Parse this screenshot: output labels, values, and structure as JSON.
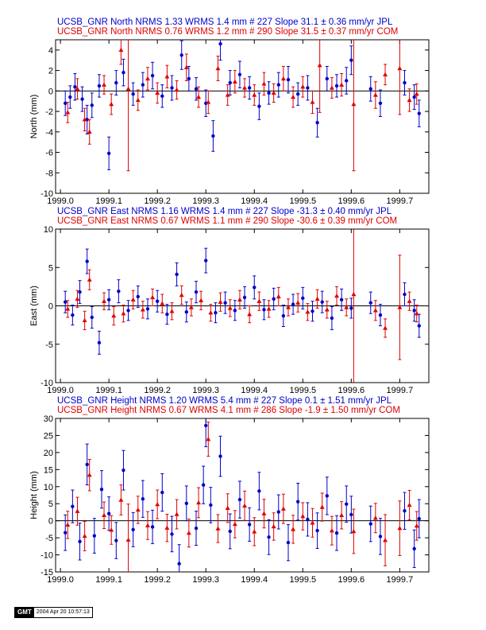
{
  "colors": {
    "jpl": "#0000cc",
    "com": "#e00000",
    "zero_line": "#000000"
  },
  "chart_data": [
    {
      "type": "scatter",
      "component": "North",
      "header_lines": [
        "UCSB_GNR North NRMS 1.33 WRMS  1.4 mm # 227 Slope   31.1 ±  0.36 mm/yr JPL",
        "UCSB_GNR North NRMS 0.76 WRMS  1.2 mm # 290 Slope   31.5 ±  0.37 mm/yr COM"
      ],
      "ylabel": "North (mm)",
      "xlim": [
        1998.99,
        1999.76
      ],
      "ylim": [
        -10,
        5
      ],
      "x_ticks": [
        1999.0,
        1999.1,
        1999.2,
        1999.3,
        1999.4,
        1999.5,
        1999.6,
        1999.7
      ],
      "x_tick_labels": [
        "1999.0",
        "1999.1",
        "1999.2",
        "1999.3",
        "1999.4",
        "1999.5",
        "1999.6",
        "1999.7"
      ],
      "y_ticks": [
        -10,
        -8,
        -6,
        -4,
        -2,
        0,
        2,
        4
      ],
      "y_tick_labels": [
        "-10",
        "-8",
        "-6",
        "-4",
        "-2",
        "0",
        "2",
        "4"
      ],
      "series": [
        {
          "name": "JPL",
          "marker": "circle",
          "x": [
            1999.01,
            1999.02,
            1999.03,
            1999.045,
            1999.055,
            1999.065,
            1999.08,
            1999.1,
            1999.115,
            1999.13,
            1999.15,
            1999.17,
            1999.19,
            1999.21,
            1999.23,
            1999.25,
            1999.265,
            1999.28,
            1999.3,
            1999.315,
            1999.33,
            1999.35,
            1999.37,
            1999.39,
            1999.41,
            1999.43,
            1999.45,
            1999.47,
            1999.49,
            1999.51,
            1999.53,
            1999.55,
            1999.57,
            1999.59,
            1999.6,
            1999.64,
            1999.66,
            1999.71,
            1999.73,
            1999.74
          ],
          "y": [
            -1.2,
            -0.6,
            0.4,
            -0.8,
            -2.8,
            -1.4,
            0.5,
            -6.1,
            0.8,
            1.8,
            -0.3,
            0.6,
            1.5,
            -0.5,
            0.3,
            3.5,
            1.2,
            0.2,
            -1.2,
            -4.4,
            4.6,
            0.8,
            1.6,
            0.3,
            -1.5,
            -0.2,
            0.6,
            1.1,
            -0.3,
            0.3,
            -3.1,
            1.2,
            0.5,
            1.0,
            3.0,
            0.2,
            -1.2,
            0.8,
            -0.6,
            -2.2
          ],
          "err": [
            1.2,
            1.1,
            1.3,
            1.2,
            1.4,
            1.2,
            1.1,
            1.6,
            1.2,
            1.3,
            1.1,
            1.2,
            1.3,
            1.1,
            1.2,
            1.4,
            1.2,
            1.1,
            1.3,
            1.5,
            1.6,
            1.2,
            1.3,
            1.1,
            1.3,
            1.1,
            1.2,
            1.3,
            1.1,
            1.2,
            1.4,
            1.2,
            1.1,
            1.3,
            1.4,
            1.2,
            1.3,
            1.2,
            1.2,
            1.3
          ]
        },
        {
          "name": "COM",
          "marker": "triangle",
          "x": [
            1999.015,
            1999.035,
            1999.05,
            1999.06,
            1999.09,
            1999.105,
            1999.125,
            1999.14,
            1999.16,
            1999.18,
            1999.2,
            1999.22,
            1999.24,
            1999.26,
            1999.285,
            1999.305,
            1999.325,
            1999.345,
            1999.36,
            1999.38,
            1999.4,
            1999.42,
            1999.44,
            1999.46,
            1999.48,
            1999.5,
            1999.52,
            1999.535,
            1999.56,
            1999.58,
            1999.605,
            1999.65,
            1999.67,
            1999.7,
            1999.72,
            1999.735
          ],
          "y": [
            -2.1,
            0.2,
            -2.8,
            -4.0,
            0.6,
            -1.3,
            4.0,
            0.2,
            -0.9,
            1.2,
            -0.2,
            1.4,
            0.1,
            2.3,
            -0.6,
            -1.1,
            2.2,
            -0.4,
            0.9,
            0.3,
            -0.4,
            0.7,
            -0.2,
            1.2,
            -0.6,
            0.4,
            -1.1,
            2.5,
            0.3,
            0.6,
            -1.3,
            -0.4,
            1.6,
            2.2,
            -0.9,
            -0.3
          ],
          "err": [
            1.0,
            1.0,
            1.1,
            1.2,
            0.9,
            1.0,
            1.4,
            8.0,
            1.0,
            1.1,
            1.0,
            1.1,
            0.9,
            1.3,
            1.0,
            1.1,
            1.2,
            1.0,
            1.1,
            0.9,
            1.0,
            1.1,
            0.9,
            1.2,
            1.0,
            1.0,
            1.1,
            4.6,
            1.0,
            1.1,
            6.5,
            1.3,
            1.0,
            4.5,
            1.1,
            1.0
          ]
        }
      ]
    },
    {
      "type": "scatter",
      "component": "East",
      "header_lines": [
        "UCSB_GNR East NRMS 1.16 WRMS  1.4 mm # 227 Slope  -31.3 ±  0.40 mm/yr JPL",
        "UCSB_GNR East NRMS 0.67 WRMS  1.1 mm # 290 Slope  -30.6 ±  0.39 mm/yr COM"
      ],
      "ylabel": "East (mm)",
      "xlim": [
        1998.99,
        1999.76
      ],
      "ylim": [
        -10,
        10
      ],
      "x_ticks": [
        1999.0,
        1999.1,
        1999.2,
        1999.3,
        1999.4,
        1999.5,
        1999.6,
        1999.7
      ],
      "x_tick_labels": [
        "1999.0",
        "1999.1",
        "1999.2",
        "1999.3",
        "1999.4",
        "1999.5",
        "1999.6",
        "1999.7"
      ],
      "y_ticks": [
        -10,
        -5,
        0,
        5,
        10
      ],
      "y_tick_labels": [
        "-10",
        "-5",
        "0",
        "5",
        "10"
      ],
      "series": [
        {
          "name": "JPL",
          "marker": "circle",
          "x": [
            1999.01,
            1999.025,
            1999.04,
            1999.055,
            1999.065,
            1999.08,
            1999.1,
            1999.12,
            1999.14,
            1999.16,
            1999.18,
            1999.2,
            1999.22,
            1999.24,
            1999.26,
            1999.28,
            1999.3,
            1999.32,
            1999.34,
            1999.36,
            1999.38,
            1999.4,
            1999.42,
            1999.44,
            1999.46,
            1999.48,
            1999.5,
            1999.52,
            1999.54,
            1999.56,
            1999.58,
            1999.6,
            1999.64,
            1999.66,
            1999.71,
            1999.73,
            1999.74
          ],
          "y": [
            0.5,
            -1.2,
            1.8,
            5.8,
            -1.5,
            -4.8,
            0.8,
            1.9,
            -0.6,
            1.2,
            -0.4,
            0.6,
            -1.1,
            4.1,
            -0.8,
            1.8,
            5.9,
            -0.9,
            0.4,
            -0.6,
            1.1,
            2.4,
            -0.5,
            0.9,
            -1.3,
            0.2,
            1.0,
            -0.7,
            0.5,
            -1.6,
            0.8,
            -0.3,
            0.4,
            -1.2,
            1.5,
            -0.6,
            -2.6
          ],
          "err": [
            1.4,
            1.3,
            1.5,
            1.6,
            1.4,
            1.5,
            1.3,
            1.5,
            1.3,
            1.4,
            1.3,
            1.4,
            1.3,
            1.5,
            1.3,
            1.4,
            1.6,
            1.3,
            1.4,
            1.3,
            1.4,
            1.5,
            1.3,
            1.4,
            1.4,
            1.3,
            1.4,
            1.3,
            1.4,
            1.5,
            1.4,
            1.3,
            1.4,
            1.4,
            1.5,
            1.4,
            1.5
          ]
        },
        {
          "name": "COM",
          "marker": "triangle",
          "x": [
            1999.015,
            1999.035,
            1999.05,
            1999.06,
            1999.09,
            1999.11,
            1999.13,
            1999.15,
            1999.17,
            1999.19,
            1999.21,
            1999.23,
            1999.25,
            1999.27,
            1999.29,
            1999.31,
            1999.33,
            1999.35,
            1999.37,
            1999.39,
            1999.41,
            1999.43,
            1999.45,
            1999.47,
            1999.49,
            1999.51,
            1999.53,
            1999.55,
            1999.57,
            1999.59,
            1999.605,
            1999.65,
            1999.67,
            1999.7,
            1999.72,
            1999.735
          ],
          "y": [
            -0.4,
            0.9,
            -1.9,
            3.4,
            0.6,
            -1.3,
            -1.0,
            0.8,
            -0.5,
            1.1,
            0.3,
            -0.7,
            1.4,
            -0.2,
            0.7,
            -0.9,
            0.5,
            -0.3,
            0.8,
            -1.1,
            0.6,
            -0.4,
            1.2,
            -0.2,
            0.4,
            -0.8,
            0.9,
            -0.5,
            1.3,
            -0.2,
            1.5,
            -0.6,
            -2.9,
            -0.2,
            0.6,
            -1.0
          ],
          "err": [
            1.1,
            1.1,
            1.2,
            1.3,
            1.1,
            1.2,
            1.1,
            1.2,
            1.1,
            1.1,
            1.2,
            1.1,
            1.2,
            1.1,
            1.2,
            1.1,
            1.2,
            1.1,
            1.2,
            1.1,
            1.2,
            1.1,
            1.2,
            1.1,
            1.2,
            1.1,
            1.2,
            1.1,
            1.2,
            1.1,
            11.5,
            1.3,
            1.2,
            6.8,
            1.2,
            1.1
          ]
        }
      ]
    },
    {
      "type": "scatter",
      "component": "Height",
      "header_lines": [
        "UCSB_GNR Height NRMS 1.20 WRMS  5.4 mm # 227 Slope    0.1 ±  1.51 mm/yr JPL",
        "UCSB_GNR Height NRMS 0.67 WRMS  4.1 mm # 286 Slope   -1.9 ±  1.50 mm/yr COM"
      ],
      "ylabel": "Height (mm)",
      "xlim": [
        1998.99,
        1999.76
      ],
      "ylim": [
        -15,
        30
      ],
      "x_ticks": [
        1999.0,
        1999.1,
        1999.2,
        1999.3,
        1999.4,
        1999.5,
        1999.6,
        1999.7
      ],
      "x_tick_labels": [
        "1999.0",
        "1999.1",
        "1999.2",
        "1999.3",
        "1999.4",
        "1999.5",
        "1999.6",
        "1999.7"
      ],
      "y_ticks": [
        -15,
        -10,
        -5,
        0,
        5,
        10,
        15,
        20,
        25,
        30
      ],
      "y_tick_labels": [
        "-15",
        "-10",
        "-5",
        "0",
        "5",
        "10",
        "15",
        "20",
        "25",
        "30"
      ],
      "series": [
        {
          "name": "JPL",
          "marker": "circle",
          "x": [
            1999.01,
            1999.025,
            1999.04,
            1999.055,
            1999.07,
            1999.085,
            1999.1,
            1999.115,
            1999.13,
            1999.15,
            1999.17,
            1999.19,
            1999.21,
            1999.23,
            1999.245,
            1999.26,
            1999.28,
            1999.295,
            1999.3,
            1999.31,
            1999.33,
            1999.35,
            1999.37,
            1999.39,
            1999.41,
            1999.43,
            1999.45,
            1999.47,
            1999.49,
            1999.51,
            1999.53,
            1999.55,
            1999.57,
            1999.59,
            1999.6,
            1999.64,
            1999.66,
            1999.71,
            1999.73,
            1999.74
          ],
          "y": [
            -3.5,
            4.2,
            -6.1,
            16.5,
            -4.4,
            9.2,
            2.1,
            -5.8,
            14.8,
            -2.6,
            6.4,
            -1.8,
            8.3,
            -3.9,
            -12.6,
            5.1,
            -2.2,
            10.5,
            27.9,
            4.6,
            18.9,
            -3.1,
            6.2,
            -1.1,
            8.7,
            -4.8,
            2.6,
            -6.4,
            5.6,
            0.4,
            -2.9,
            7.3,
            -3.6,
            4.9,
            1.8,
            -0.9,
            -4.6,
            2.9,
            -8.2,
            0.6
          ],
          "err": [
            5.2,
            4.8,
            5.4,
            6.0,
            5.1,
            5.5,
            4.9,
            5.3,
            5.8,
            5.0,
            5.4,
            4.9,
            5.5,
            5.2,
            5.6,
            5.1,
            5.0,
            5.5,
            6.2,
            5.2,
            5.9,
            5.1,
            5.4,
            4.9,
            5.5,
            5.1,
            5.0,
            5.3,
            5.4,
            4.9,
            5.2,
            5.5,
            5.1,
            5.3,
            5.4,
            5.2,
            5.3,
            5.4,
            5.5,
            5.6
          ]
        },
        {
          "name": "COM",
          "marker": "triangle",
          "x": [
            1999.015,
            1999.035,
            1999.05,
            1999.06,
            1999.09,
            1999.105,
            1999.125,
            1999.14,
            1999.16,
            1999.18,
            1999.2,
            1999.22,
            1999.24,
            1999.265,
            1999.285,
            1999.305,
            1999.325,
            1999.345,
            1999.36,
            1999.38,
            1999.4,
            1999.42,
            1999.44,
            1999.46,
            1999.48,
            1999.5,
            1999.52,
            1999.54,
            1999.56,
            1999.58,
            1999.605,
            1999.65,
            1999.67,
            1999.7,
            1999.72,
            1999.735
          ],
          "y": [
            -1.2,
            2.8,
            -4.5,
            13.4,
            1.6,
            -2.7,
            6.1,
            -5.6,
            3.2,
            -1.4,
            4.8,
            -2.1,
            1.9,
            -3.6,
            5.3,
            23.9,
            -2.3,
            3.7,
            -1.0,
            4.4,
            -3.2,
            2.1,
            -1.7,
            3.5,
            -2.5,
            1.3,
            -0.6,
            4.0,
            -2.9,
            1.6,
            -3.1,
            0.8,
            -5.7,
            -2.2,
            4.6,
            -1.5
          ],
          "err": [
            4.0,
            4.1,
            4.3,
            4.6,
            3.9,
            4.2,
            4.4,
            10.5,
            4.0,
            4.1,
            4.2,
            4.0,
            4.3,
            4.1,
            4.4,
            5.0,
            4.1,
            4.2,
            4.0,
            4.3,
            4.1,
            4.2,
            4.0,
            4.3,
            4.1,
            4.0,
            4.2,
            4.1,
            4.2,
            4.0,
            6.5,
            4.3,
            7.5,
            8.0,
            4.3,
            4.2
          ]
        }
      ]
    }
  ],
  "footer": {
    "logo_text": "GMT",
    "timestamp": "2004 Apr 20 10:57:13"
  }
}
